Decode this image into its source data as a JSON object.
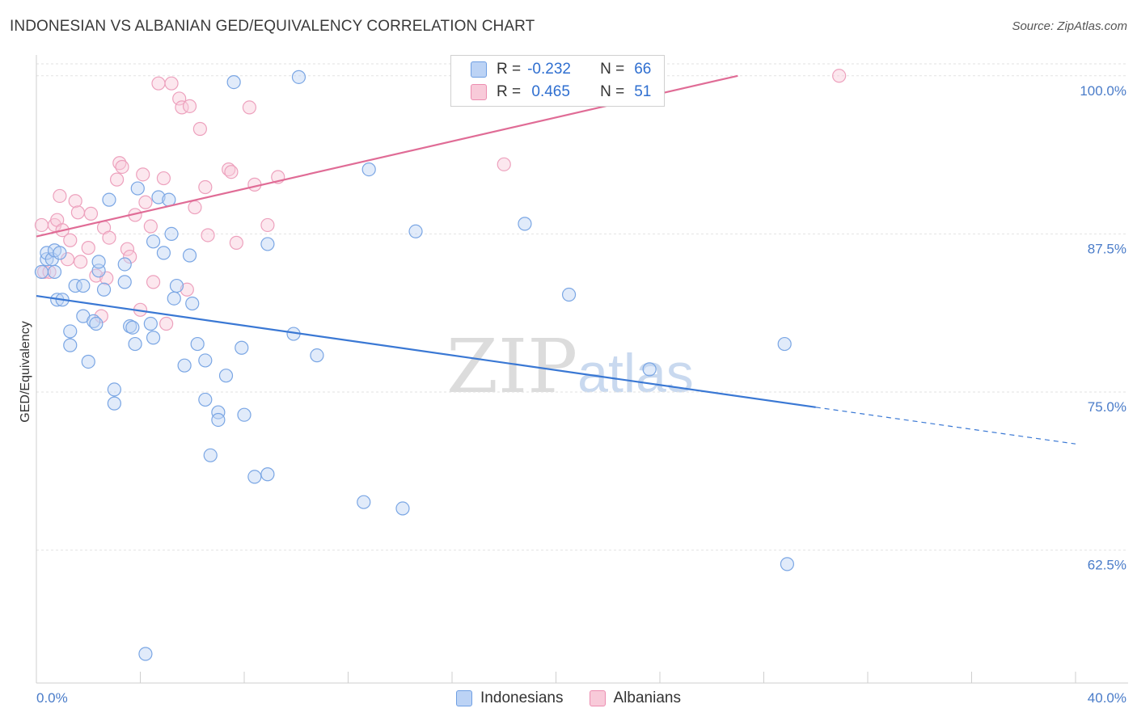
{
  "header": {
    "title": "INDONESIAN VS ALBANIAN GED/EQUIVALENCY CORRELATION CHART",
    "source": "Source: ZipAtlas.com"
  },
  "watermark": {
    "main": "ZIP",
    "sub": "atlas"
  },
  "legend": {
    "rows": [
      {
        "r_label": "R =",
        "r_value": "-0.232",
        "n_label": "N =",
        "n_value": "66",
        "color": "#6f9fe3",
        "fill": "#bcd3f5"
      },
      {
        "r_label": "R =",
        "r_value": " 0.465",
        "n_label": "N =",
        "n_value": "51",
        "color": "#ec8db0",
        "fill": "#f8cad9"
      }
    ]
  },
  "bottom_legend": {
    "items": [
      {
        "label": "Indonesians",
        "color": "#6f9fe3",
        "fill": "#bcd3f5"
      },
      {
        "label": "Albanians",
        "color": "#ec8db0",
        "fill": "#f8cad9"
      }
    ]
  },
  "chart_data": {
    "type": "scatter",
    "title": "INDONESIAN VS ALBANIAN GED/EQUIVALENCY CORRELATION CHART",
    "xlabel": "",
    "ylabel": "GED/Equivalency",
    "xlim": [
      0,
      40
    ],
    "ylim": [
      52.0,
      101.2
    ],
    "x_tick_labels": [
      "0.0%",
      "40.0%"
    ],
    "y_ticks": [
      62.5,
      75.0,
      87.5,
      100.0
    ],
    "y_tick_labels": [
      "62.5%",
      "75.0%",
      "87.5%",
      "100.0%"
    ],
    "grid": true,
    "series": [
      {
        "name": "Indonesians",
        "color": "#3a78d4",
        "points": [
          [
            0.2,
            84.5
          ],
          [
            0.4,
            85.5
          ],
          [
            0.4,
            86.0
          ],
          [
            0.6,
            85.5
          ],
          [
            0.7,
            86.2
          ],
          [
            0.9,
            86.0
          ],
          [
            0.7,
            84.5
          ],
          [
            0.8,
            82.3
          ],
          [
            1.0,
            82.3
          ],
          [
            1.5,
            83.4
          ],
          [
            1.8,
            83.4
          ],
          [
            2.4,
            84.6
          ],
          [
            2.6,
            83.1
          ],
          [
            2.4,
            85.3
          ],
          [
            3.4,
            85.1
          ],
          [
            1.8,
            81.0
          ],
          [
            1.3,
            79.8
          ],
          [
            2.2,
            80.6
          ],
          [
            2.3,
            80.4
          ],
          [
            1.3,
            78.7
          ],
          [
            2.0,
            77.4
          ],
          [
            3.0,
            75.2
          ],
          [
            3.0,
            74.1
          ],
          [
            2.8,
            90.2
          ],
          [
            3.4,
            83.7
          ],
          [
            3.6,
            80.2
          ],
          [
            3.7,
            80.1
          ],
          [
            3.8,
            78.8
          ],
          [
            3.9,
            91.1
          ],
          [
            4.4,
            80.4
          ],
          [
            4.5,
            79.3
          ],
          [
            4.7,
            90.4
          ],
          [
            4.5,
            86.9
          ],
          [
            4.9,
            86.0
          ],
          [
            5.1,
            90.2
          ],
          [
            5.2,
            87.5
          ],
          [
            5.3,
            82.4
          ],
          [
            5.4,
            83.4
          ],
          [
            5.7,
            77.1
          ],
          [
            5.9,
            85.8
          ],
          [
            6.0,
            82.0
          ],
          [
            6.2,
            78.8
          ],
          [
            6.5,
            77.5
          ],
          [
            6.5,
            74.4
          ],
          [
            6.7,
            70.0
          ],
          [
            7.0,
            73.4
          ],
          [
            7.0,
            72.8
          ],
          [
            7.3,
            76.3
          ],
          [
            7.6,
            99.5
          ],
          [
            7.9,
            78.5
          ],
          [
            8.0,
            73.2
          ],
          [
            8.4,
            68.3
          ],
          [
            8.9,
            86.7
          ],
          [
            8.9,
            68.5
          ],
          [
            9.9,
            79.6
          ],
          [
            10.1,
            99.9
          ],
          [
            10.8,
            77.9
          ],
          [
            12.6,
            66.3
          ],
          [
            12.8,
            92.6
          ],
          [
            14.1,
            65.8
          ],
          [
            14.6,
            87.7
          ],
          [
            18.8,
            88.3
          ],
          [
            20.5,
            82.7
          ],
          [
            23.6,
            76.8
          ],
          [
            28.8,
            78.8
          ],
          [
            28.9,
            61.4
          ],
          [
            4.2,
            54.3
          ]
        ],
        "trend": {
          "x0": 0,
          "y0": 82.6,
          "x1": 30.0,
          "y1": 73.8,
          "dash_x1": 40.0,
          "dash_y1": 70.9
        }
      },
      {
        "name": "Albanians",
        "color": "#e06c96",
        "points": [
          [
            0.2,
            88.2
          ],
          [
            0.3,
            84.5
          ],
          [
            0.5,
            84.5
          ],
          [
            0.7,
            88.2
          ],
          [
            0.8,
            88.6
          ],
          [
            0.9,
            90.5
          ],
          [
            1.0,
            87.8
          ],
          [
            1.3,
            87.0
          ],
          [
            1.2,
            85.5
          ],
          [
            1.5,
            90.1
          ],
          [
            1.6,
            89.2
          ],
          [
            1.7,
            85.3
          ],
          [
            2.0,
            86.4
          ],
          [
            2.1,
            89.1
          ],
          [
            2.3,
            84.2
          ],
          [
            2.5,
            81.0
          ],
          [
            2.6,
            88.0
          ],
          [
            2.7,
            84.0
          ],
          [
            2.8,
            87.2
          ],
          [
            3.1,
            91.8
          ],
          [
            3.2,
            93.1
          ],
          [
            3.3,
            92.8
          ],
          [
            3.5,
            86.3
          ],
          [
            3.6,
            85.7
          ],
          [
            3.8,
            89.0
          ],
          [
            4.0,
            81.5
          ],
          [
            4.1,
            92.2
          ],
          [
            4.2,
            90.0
          ],
          [
            4.4,
            88.1
          ],
          [
            4.5,
            83.7
          ],
          [
            4.7,
            99.4
          ],
          [
            4.9,
            91.9
          ],
          [
            5.0,
            80.4
          ],
          [
            5.2,
            99.4
          ],
          [
            5.5,
            98.2
          ],
          [
            5.6,
            97.5
          ],
          [
            5.8,
            83.1
          ],
          [
            5.9,
            97.6
          ],
          [
            6.1,
            89.6
          ],
          [
            6.3,
            95.8
          ],
          [
            6.5,
            91.2
          ],
          [
            6.6,
            87.4
          ],
          [
            7.4,
            92.6
          ],
          [
            7.5,
            92.4
          ],
          [
            7.7,
            86.8
          ],
          [
            8.2,
            97.5
          ],
          [
            8.4,
            91.4
          ],
          [
            8.9,
            88.2
          ],
          [
            9.3,
            92.0
          ],
          [
            18.0,
            93.0
          ],
          [
            30.9,
            100.0
          ]
        ],
        "trend": {
          "x0": 0,
          "y0": 87.3,
          "x1": 27.0,
          "y1": 100.0
        }
      }
    ]
  }
}
